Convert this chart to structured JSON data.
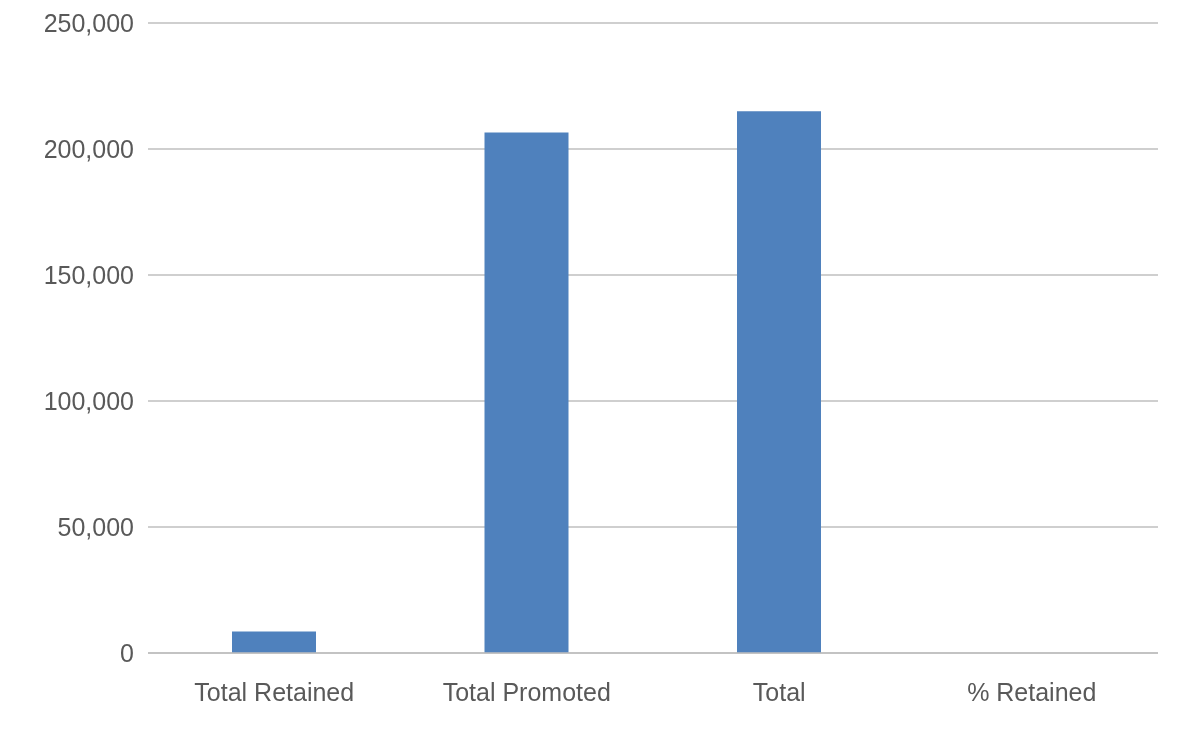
{
  "chart_data": {
    "type": "bar",
    "categories": [
      "Total Retained",
      "Total Promoted",
      "Total",
      "% Retained"
    ],
    "series": [
      {
        "color": "#4f81bd",
        "values": [
          8500,
          206500,
          215000,
          0
        ]
      }
    ],
    "ylim": [
      0,
      250000
    ],
    "yticks": [
      {
        "value": 0,
        "label": "0"
      },
      {
        "value": 50000,
        "label": "50,000"
      },
      {
        "value": 100000,
        "label": "100,000"
      },
      {
        "value": 150000,
        "label": "150,000"
      },
      {
        "value": 200000,
        "label": "200,000"
      },
      {
        "value": 250000,
        "label": "250,000"
      }
    ],
    "grid": "y",
    "legend": false
  }
}
